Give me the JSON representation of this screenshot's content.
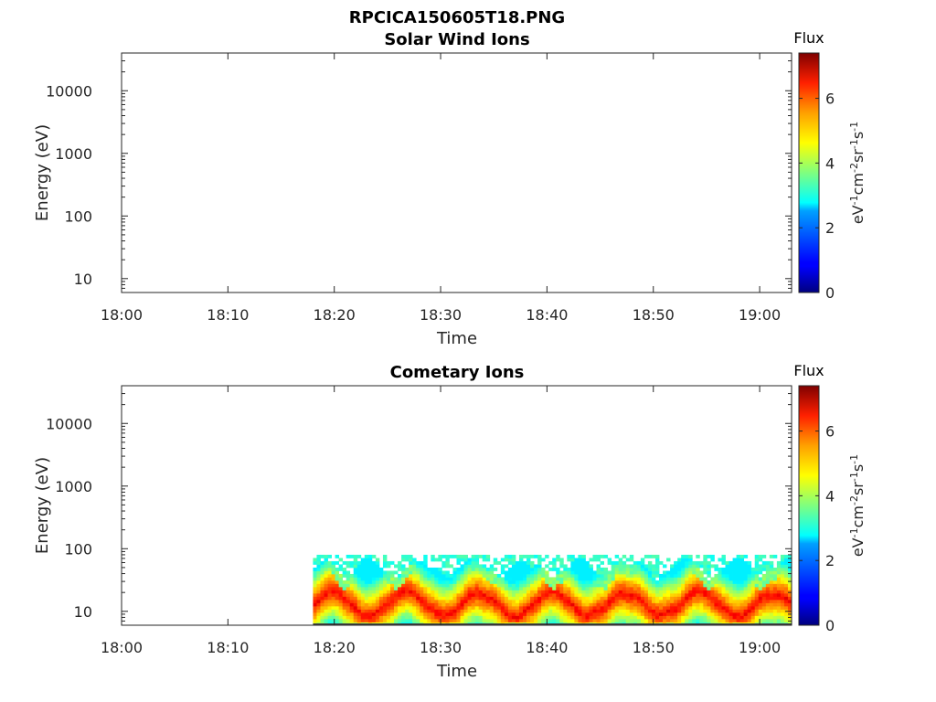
{
  "figure": {
    "title": "RPCICA150605T18.PNG"
  },
  "chart_data": [
    {
      "type": "heatmap",
      "title": "Solar Wind Ions",
      "xlabel": "Time",
      "ylabel": "Energy (eV)",
      "x_ticks": [
        "18:00",
        "18:10",
        "18:20",
        "18:30",
        "18:40",
        "18:50",
        "19:00"
      ],
      "x_range": [
        "18:00",
        "19:03"
      ],
      "y_scale": "log",
      "y_ticks": [
        "10",
        "100",
        "1000",
        "10000"
      ],
      "y_range": [
        6,
        40000
      ],
      "colorbar": {
        "title": "Flux",
        "label_parts": [
          "eV",
          "-1",
          "cm",
          "-2",
          "sr",
          "-1",
          "s",
          "-1"
        ],
        "ticks": [
          "0",
          "2",
          "4",
          "6"
        ],
        "range": [
          0,
          7.4
        ],
        "colormap": "jet"
      },
      "data": "empty"
    },
    {
      "type": "heatmap",
      "title": "Cometary Ions",
      "xlabel": "Time",
      "ylabel": "Energy (eV)",
      "x_ticks": [
        "18:00",
        "18:10",
        "18:20",
        "18:30",
        "18:40",
        "18:50",
        "19:00"
      ],
      "x_range": [
        "18:00",
        "19:03"
      ],
      "y_scale": "log",
      "y_ticks": [
        "10",
        "100",
        "1000",
        "10000"
      ],
      "y_range": [
        6,
        40000
      ],
      "colorbar": {
        "title": "Flux",
        "label_parts": [
          "eV",
          "-1",
          "cm",
          "-2",
          "sr",
          "-1",
          "s",
          "-1"
        ],
        "ticks": [
          "0",
          "2",
          "4",
          "6"
        ],
        "range": [
          0,
          7.4
        ],
        "colormap": "jet"
      },
      "data_start_time": "18:18",
      "data_energy_range_eV": [
        6,
        80
      ],
      "band_peak_flux": 6.5
    }
  ]
}
